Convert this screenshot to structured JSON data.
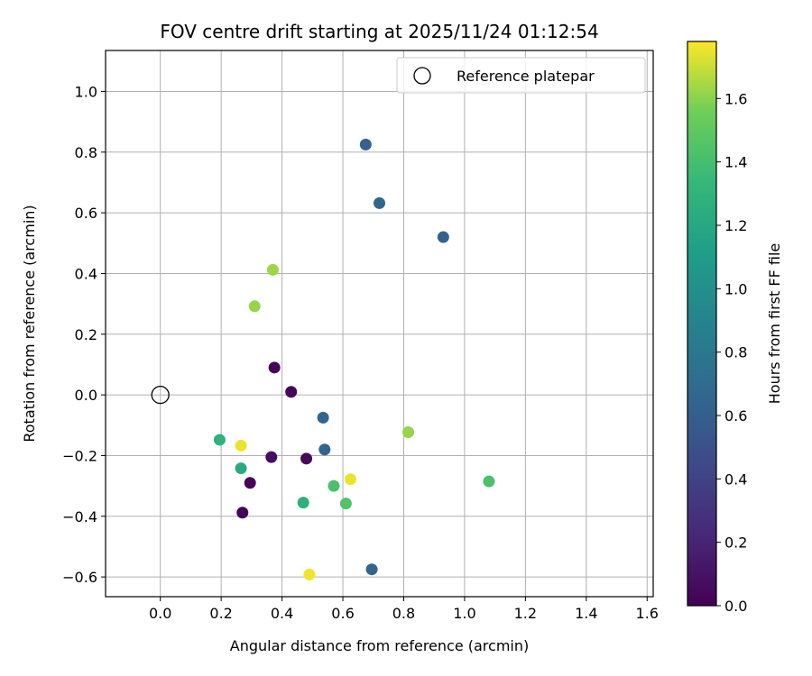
{
  "chart_data": {
    "type": "scatter",
    "title": "FOV centre drift starting at 2025/11/24 01:12:54",
    "xlabel": "Angular distance from reference (arcmin)",
    "ylabel": "Rotation from reference (arcmin)",
    "xlim": [
      -0.18,
      1.62
    ],
    "ylim": [
      -0.665,
      1.135
    ],
    "xticks": [
      0.0,
      0.2,
      0.4,
      0.6,
      0.8,
      1.0,
      1.2,
      1.4,
      1.6
    ],
    "xtick_labels": [
      "0.0",
      "0.2",
      "0.4",
      "0.6",
      "0.8",
      "1.0",
      "1.2",
      "1.4",
      "1.6"
    ],
    "yticks": [
      -0.6,
      -0.4,
      -0.2,
      0.0,
      0.2,
      0.4,
      0.6,
      0.8,
      1.0
    ],
    "ytick_labels": [
      "−0.6",
      "−0.4",
      "−0.2",
      "0.0",
      "0.2",
      "0.4",
      "0.6",
      "0.8",
      "1.0"
    ],
    "grid": true,
    "legend": {
      "position": "top-right",
      "entries": [
        "Reference platepar"
      ]
    },
    "reference_point": {
      "x": 0.0,
      "y": 0.0,
      "label": "Reference platepar"
    },
    "colorbar": {
      "label": "Hours from first FF file",
      "colormap": "viridis",
      "range": [
        0.0,
        1.78
      ],
      "ticks": [
        0.0,
        0.2,
        0.4,
        0.6,
        0.8,
        1.0,
        1.2,
        1.4,
        1.6
      ],
      "tick_labels": [
        "0.0",
        "0.2",
        "0.4",
        "0.6",
        "0.8",
        "1.0",
        "1.2",
        "1.4",
        "1.6"
      ]
    },
    "points": [
      {
        "x": 0.375,
        "y": 0.09,
        "hours": 0.02
      },
      {
        "x": 0.43,
        "y": 0.01,
        "hours": 0.03
      },
      {
        "x": 0.365,
        "y": -0.205,
        "hours": 0.08
      },
      {
        "x": 0.48,
        "y": -0.21,
        "hours": 0.05
      },
      {
        "x": 0.295,
        "y": -0.29,
        "hours": 0.03
      },
      {
        "x": 0.27,
        "y": -0.388,
        "hours": 0.01
      },
      {
        "x": 0.675,
        "y": 0.825,
        "hours": 0.62
      },
      {
        "x": 0.72,
        "y": 0.632,
        "hours": 0.66
      },
      {
        "x": 0.93,
        "y": 0.52,
        "hours": 0.62
      },
      {
        "x": 0.535,
        "y": -0.075,
        "hours": 0.65
      },
      {
        "x": 0.54,
        "y": -0.18,
        "hours": 0.64
      },
      {
        "x": 0.695,
        "y": -0.575,
        "hours": 0.64
      },
      {
        "x": 0.195,
        "y": -0.148,
        "hours": 1.28
      },
      {
        "x": 0.265,
        "y": -0.242,
        "hours": 1.22
      },
      {
        "x": 0.47,
        "y": -0.355,
        "hours": 1.26
      },
      {
        "x": 0.57,
        "y": -0.3,
        "hours": 1.42
      },
      {
        "x": 0.61,
        "y": -0.358,
        "hours": 1.45
      },
      {
        "x": 1.08,
        "y": -0.285,
        "hours": 1.42
      },
      {
        "x": 0.31,
        "y": 0.292,
        "hours": 1.62
      },
      {
        "x": 0.37,
        "y": 0.412,
        "hours": 1.63
      },
      {
        "x": 0.815,
        "y": -0.123,
        "hours": 1.62
      },
      {
        "x": 0.265,
        "y": -0.167,
        "hours": 1.75
      },
      {
        "x": 0.625,
        "y": -0.278,
        "hours": 1.75
      },
      {
        "x": 0.49,
        "y": -0.592,
        "hours": 1.76
      }
    ]
  }
}
